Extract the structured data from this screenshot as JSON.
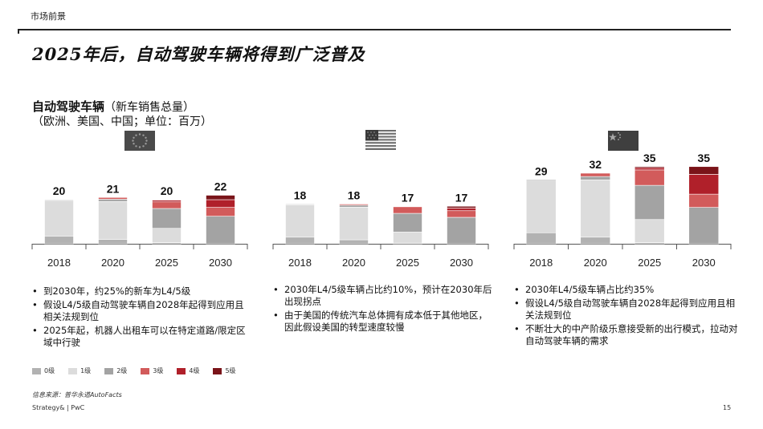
{
  "header": {
    "section_label": "市场前景",
    "title": "2025年后，自动驾驶车辆将得到广泛普及"
  },
  "subtitle": {
    "bold": "自动驾驶车辆",
    "line1_rest": "（新车销售总量）",
    "line2": "（欧洲、美国、中国；单位：百万）"
  },
  "colors": {
    "level0": "#b2b2b2",
    "level1": "#dcdcdc",
    "level2": "#a3a3a3",
    "level3": "#d25b5b",
    "level4": "#b0202a",
    "level5": "#7a1419"
  },
  "legend": [
    "0级",
    "1级",
    "2级",
    "3级",
    "4级",
    "5级"
  ],
  "chart_data": [
    {
      "type": "bar",
      "stacked": true,
      "region_icon": "eu-flag-icon",
      "categories": [
        "2018",
        "2020",
        "2025",
        "2030"
      ],
      "totals": [
        20,
        21,
        20,
        22
      ],
      "series": [
        {
          "name": "0级",
          "values": [
            3.5,
            2.0,
            0.5,
            0.0
          ]
        },
        {
          "name": "1级",
          "values": [
            16.2,
            17.2,
            6.5,
            0.0
          ]
        },
        {
          "name": "2级",
          "values": [
            0.3,
            1.0,
            9.0,
            12.5
          ]
        },
        {
          "name": "3级",
          "values": [
            0.0,
            0.8,
            3.0,
            4.0
          ]
        },
        {
          "name": "4级",
          "values": [
            0.0,
            0.0,
            0.8,
            3.5
          ]
        },
        {
          "name": "5级",
          "values": [
            0.0,
            0.0,
            0.2,
            2.0
          ]
        }
      ]
    },
    {
      "type": "bar",
      "stacked": true,
      "region_icon": "us-flag-icon",
      "categories": [
        "2018",
        "2020",
        "2025",
        "2030"
      ],
      "totals": [
        18,
        18,
        17,
        17
      ],
      "series": [
        {
          "name": "0级",
          "values": [
            3.0,
            1.8,
            0.3,
            0.0
          ]
        },
        {
          "name": "1级",
          "values": [
            14.7,
            14.8,
            5.0,
            0.0
          ]
        },
        {
          "name": "2级",
          "values": [
            0.3,
            0.9,
            8.5,
            12.0
          ]
        },
        {
          "name": "3级",
          "values": [
            0.0,
            0.5,
            3.0,
            3.0
          ]
        },
        {
          "name": "4级",
          "values": [
            0.0,
            0.0,
            0.2,
            1.2
          ]
        },
        {
          "name": "5级",
          "values": [
            0.0,
            0.0,
            0.0,
            0.8
          ]
        }
      ]
    },
    {
      "type": "bar",
      "stacked": true,
      "region_icon": "china-flag-icon",
      "categories": [
        "2018",
        "2020",
        "2025",
        "2030"
      ],
      "totals": [
        29,
        32,
        35,
        35
      ],
      "series": [
        {
          "name": "0级",
          "values": [
            5.0,
            3.0,
            0.5,
            0.0
          ]
        },
        {
          "name": "1级",
          "values": [
            23.5,
            26.0,
            10.5,
            0.0
          ]
        },
        {
          "name": "2级",
          "values": [
            0.5,
            1.5,
            15.5,
            16.5
          ]
        },
        {
          "name": "3级",
          "values": [
            0.0,
            1.5,
            7.0,
            6.0
          ]
        },
        {
          "name": "4级",
          "values": [
            0.0,
            0.0,
            1.0,
            9.0
          ]
        },
        {
          "name": "5级",
          "values": [
            0.0,
            0.0,
            0.5,
            3.5
          ]
        }
      ]
    }
  ],
  "bullets": {
    "eu": [
      "到2030年，约25%的新车为L4/5级",
      "假设L4/5级自动驾驶车辆自2028年起得到应用且相关法规到位",
      "2025年起，机器人出租车可以在特定道路/限定区域中行驶"
    ],
    "us": [
      "2030年L4/5级车辆占比约10%，预计在2030年后出现拐点",
      "由于美国的传统汽车总体拥有成本低于其他地区，因此假设美国的转型速度较慢"
    ],
    "cn": [
      "2030年L4/5级车辆占比约35%",
      "假设L4/5级自动驾驶车辆自2028年起得到应用且相关法规到位",
      "不断壮大的中产阶级乐意接受新的出行模式，拉动对自动驾驶车辆的需求"
    ]
  },
  "footer": {
    "source": "信息来源：普华永道AutoFacts",
    "brand": "Strategy& | PwC",
    "page": "15"
  }
}
